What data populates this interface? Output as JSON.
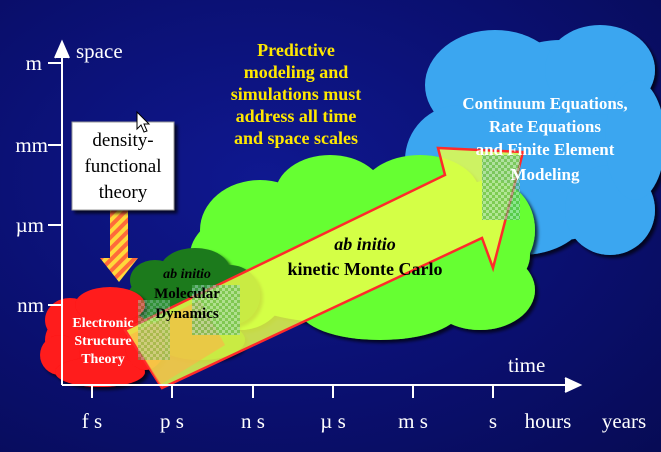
{
  "axes": {
    "y_label": "space",
    "x_label": "time",
    "y_ticks": [
      "m",
      "mm",
      "µm",
      "nm"
    ],
    "x_ticks": [
      "f s",
      "p s",
      "n s",
      "µ s",
      "m s",
      "s",
      "hours",
      "years"
    ]
  },
  "headline": {
    "lines": [
      "Predictive",
      "modeling and",
      "simulations must",
      "address all time",
      "and space scales"
    ]
  },
  "dft_box": {
    "lines": [
      "density-",
      "functional",
      "theory"
    ]
  },
  "clouds": {
    "electronic": {
      "lines": [
        "Electronic",
        "Structure",
        "Theory"
      ]
    },
    "md": {
      "line1": "ab initio",
      "line2": "Molecular",
      "line3": "Dynamics"
    },
    "kmc": {
      "line1": "ab initio",
      "line2": "kinetic Monte Carlo"
    },
    "continuum": {
      "lines": [
        "Continuum Equations,",
        "Rate Equations",
        "and Finite Element",
        "Modeling"
      ]
    }
  },
  "colors": {
    "background": "#0a0f6e",
    "headline": "#ffe800",
    "cloud_red": "#ff1a1a",
    "cloud_darkgreen": "#1f7a1f",
    "cloud_green": "#66ff33",
    "cloud_blue": "#3aa6f0",
    "arrow_fill": "#e8ff4a",
    "arrow_stroke": "#ff2a2a"
  }
}
